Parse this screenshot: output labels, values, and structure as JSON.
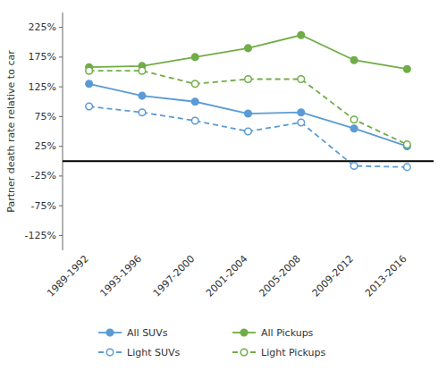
{
  "chart_data": {
    "type": "line",
    "categories": [
      "1989-1992",
      "1993-1996",
      "1997-2000",
      "2001-2004",
      "2005-2008",
      "2009-2012",
      "2013-2016"
    ],
    "series": [
      {
        "name": "All SUVs",
        "color": "#5b9bd5",
        "line_style": "solid",
        "marker": "circle",
        "values": [
          1.3,
          1.1,
          1.0,
          0.8,
          0.82,
          0.55,
          0.25
        ]
      },
      {
        "name": "All Pickups",
        "color": "#70ad47",
        "line_style": "solid",
        "marker": "circle",
        "values": [
          1.58,
          1.6,
          1.75,
          1.9,
          2.12,
          1.7,
          1.55
        ]
      },
      {
        "name": "Light SUVs",
        "color": "#5b9bd5",
        "line_style": "dashed",
        "marker": "open-circle",
        "values": [
          0.92,
          0.82,
          0.68,
          0.5,
          0.65,
          -0.08,
          -0.1
        ]
      },
      {
        "name": "Light Pickups",
        "color": "#70ad47",
        "line_style": "dashed",
        "marker": "open-circle",
        "values": [
          1.52,
          1.52,
          1.3,
          1.38,
          1.38,
          0.7,
          0.28
        ]
      }
    ],
    "ylabel": "Partner death rate relative to car",
    "ylim": [
      -1.5,
      2.5
    ],
    "yticks": [
      {
        "value": -1.25,
        "label": "-125%"
      },
      {
        "value": -0.75,
        "label": "-75%"
      },
      {
        "value": -0.25,
        "label": "-25%"
      },
      {
        "value": 0.25,
        "label": "25%"
      },
      {
        "value": 0.75,
        "label": "75%"
      },
      {
        "value": 1.25,
        "label": "125%"
      },
      {
        "value": 1.75,
        "label": "175%"
      },
      {
        "value": 2.25,
        "label": "225%"
      }
    ],
    "grid": false,
    "legend": "bottom"
  }
}
